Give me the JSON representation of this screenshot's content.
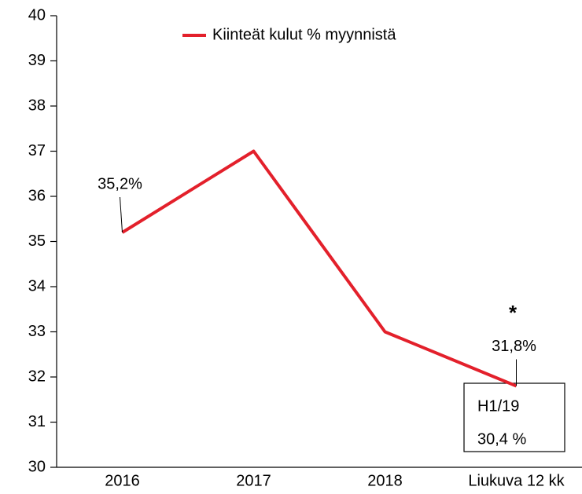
{
  "chart_data": {
    "type": "line",
    "categories": [
      "2016",
      "2017",
      "2018",
      "Liukuva 12 kk"
    ],
    "series": [
      {
        "name": "Kiinteät kulut % myynnistä",
        "color": "#e3202b",
        "values": [
          35.2,
          37,
          33,
          31.8
        ],
        "value_labels": [
          "35,2%",
          null,
          null,
          "31,8%"
        ]
      }
    ],
    "ylim": [
      30,
      40
    ],
    "yticks": [
      30,
      31,
      32,
      33,
      34,
      35,
      36,
      37,
      38,
      39,
      40
    ],
    "grid": false,
    "legend": "top",
    "annotations": [
      "*",
      "H1/19",
      "30,4 %"
    ]
  }
}
